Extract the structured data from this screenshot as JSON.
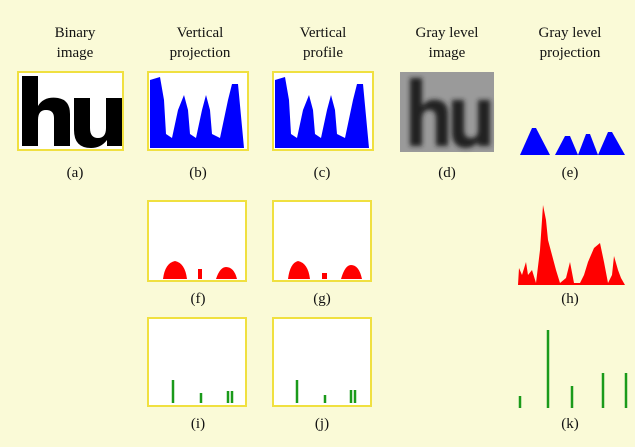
{
  "headers": [
    [
      "Binary",
      "image"
    ],
    [
      "Vertical",
      "projection"
    ],
    [
      "Vertical",
      "profile"
    ],
    [
      "Gray level",
      "image"
    ],
    [
      "Gray level",
      "projection"
    ]
  ],
  "panel_labels": [
    "(a)",
    "(b)",
    "(c)",
    "(d)",
    "(e)",
    "(f)",
    "(g)",
    "(h)",
    "(i)",
    "(j)",
    "(k)"
  ]
}
